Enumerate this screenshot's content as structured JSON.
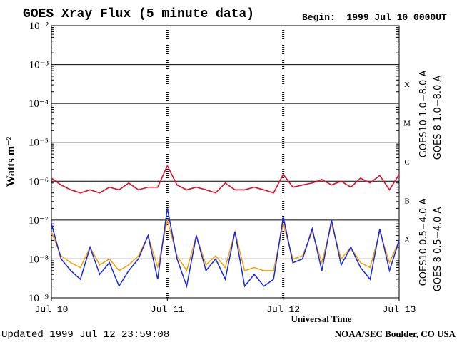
{
  "chart_data": {
    "type": "line",
    "title": "GOES Xray Flux (5 minute data)",
    "begin": "Begin:  1999 Jul 10 0000UT",
    "y_label": "Watts m⁻²",
    "x_label": "Universal Time",
    "updated": "Updated 1999 Jul 12 23:59:08",
    "credit": "NOAA/SEC Boulder, CO USA",
    "log_y": true,
    "grid": true,
    "ylim": [
      1e-09,
      0.01
    ],
    "yticks": [
      {
        "value": 1e-09,
        "label": "10⁻⁹"
      },
      {
        "value": 1e-08,
        "label": "10⁻⁸"
      },
      {
        "value": 1e-07,
        "label": "10⁻⁷"
      },
      {
        "value": 1e-06,
        "label": "10⁻⁶"
      },
      {
        "value": 1e-05,
        "label": "10⁻⁵"
      },
      {
        "value": 0.0001,
        "label": "10⁻⁴"
      },
      {
        "value": 0.001,
        "label": "10⁻³"
      },
      {
        "value": 0.01,
        "label": "10⁻²"
      }
    ],
    "xlim": [
      0,
      72
    ],
    "xticks": [
      {
        "value": 0,
        "label": "Jul 10"
      },
      {
        "value": 24,
        "label": "Jul 11"
      },
      {
        "value": 48,
        "label": "Jul 12"
      },
      {
        "value": 72,
        "label": "Jul 13"
      }
    ],
    "flare_classes": [
      {
        "label": "A",
        "value": 1e-08
      },
      {
        "label": "B",
        "value": 1e-07
      },
      {
        "label": "C",
        "value": 1e-06
      },
      {
        "label": "M",
        "value": 1e-05
      },
      {
        "label": "X",
        "value": 0.0001
      }
    ],
    "x": [
      0,
      2,
      4,
      6,
      8,
      10,
      12,
      14,
      16,
      18,
      20,
      22,
      24,
      26,
      28,
      30,
      32,
      34,
      36,
      38,
      40,
      42,
      44,
      46,
      48,
      50,
      52,
      54,
      56,
      58,
      60,
      62,
      64,
      66,
      68,
      70,
      72
    ],
    "series": [
      {
        "name": "GOES10 1.0−8.0 A",
        "color": "#8a2be2",
        "values": [
          1.2e-06,
          8e-07,
          6e-07,
          5e-07,
          6e-07,
          5e-07,
          7e-07,
          6e-07,
          9e-07,
          6e-07,
          7e-07,
          7e-07,
          2.5e-06,
          8e-07,
          6e-07,
          7e-07,
          6e-07,
          5e-07,
          9e-07,
          6e-07,
          6e-07,
          7e-07,
          6e-07,
          5e-07,
          1.5e-06,
          7e-07,
          8e-07,
          9e-07,
          1.1e-06,
          8e-07,
          1e-06,
          7e-07,
          1.2e-06,
          9e-07,
          1.4e-06,
          6e-07,
          1.5e-06
        ]
      },
      {
        "name": "GOES 8 1.0−8.0 A",
        "color": "#e8141e",
        "values": [
          1.2e-06,
          8e-07,
          6e-07,
          5e-07,
          6e-07,
          5e-07,
          7e-07,
          6e-07,
          9e-07,
          6e-07,
          7e-07,
          7e-07,
          2.5e-06,
          8e-07,
          6e-07,
          7e-07,
          6e-07,
          5e-07,
          9e-07,
          6e-07,
          6e-07,
          7e-07,
          6e-07,
          5e-07,
          1.5e-06,
          7e-07,
          8e-07,
          9e-07,
          1.1e-06,
          8e-07,
          1e-06,
          7e-07,
          1.2e-06,
          9e-07,
          1.4e-06,
          6e-07,
          1.5e-06
        ]
      },
      {
        "name": "GOES10 0.5−4.0 A",
        "color": "#f5a000",
        "values": [
          5e-08,
          1.2e-08,
          8e-09,
          6e-09,
          2e-08,
          7e-09,
          1e-08,
          5e-09,
          7e-09,
          1.2e-08,
          4e-08,
          6e-09,
          1e-07,
          1.2e-08,
          5e-09,
          4e-08,
          7e-09,
          1.2e-08,
          6e-09,
          5e-08,
          5e-09,
          6e-09,
          5e-09,
          5e-09,
          8e-08,
          1e-08,
          1.2e-08,
          5e-08,
          8e-09,
          8e-08,
          1e-08,
          2e-08,
          8e-09,
          6e-09,
          5e-08,
          8e-09,
          3e-08
        ]
      },
      {
        "name": "GOES 8 0.5−4.0 A",
        "color": "#1428e6",
        "values": [
          8e-08,
          1e-08,
          5e-09,
          3e-09,
          2e-08,
          4e-09,
          8e-09,
          2e-09,
          5e-09,
          1e-08,
          4e-08,
          3e-09,
          2e-07,
          1e-08,
          2e-09,
          4e-08,
          5e-09,
          1e-08,
          3e-09,
          5e-08,
          2e-09,
          4e-09,
          2e-09,
          3e-09,
          1.2e-07,
          8e-09,
          1e-08,
          6e-08,
          5e-09,
          1e-07,
          7e-09,
          2e-08,
          6e-09,
          3e-09,
          6e-08,
          5e-09,
          3e-08
        ]
      }
    ]
  }
}
